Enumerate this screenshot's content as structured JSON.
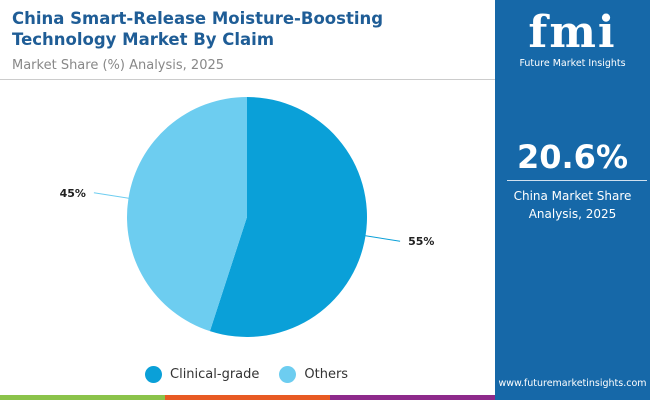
{
  "title": "China Smart-Release Moisture-Boosting Technology Market By Claim",
  "subtitle": "Market Share (%) Analysis, 2025",
  "panel": {
    "logo_text": "fmi",
    "brand": "Future Market Insights",
    "value": "20.6%",
    "desc_line1": "China Market Share",
    "desc_line2": "Analysis, 2025",
    "url": "www.futuremarketinsights.com"
  },
  "colors": {
    "panel": "#1668a8",
    "bars": [
      "#8bc34a",
      "#e85a23",
      "#8e2a8b"
    ]
  },
  "chart_data": {
    "type": "pie",
    "categories": [
      "Clinical-grade",
      "Others"
    ],
    "values": [
      55,
      45
    ],
    "labels": [
      "55%",
      "45%"
    ],
    "colors": [
      "#0aa0d8",
      "#6dcdf0"
    ],
    "legend": "bottom"
  }
}
